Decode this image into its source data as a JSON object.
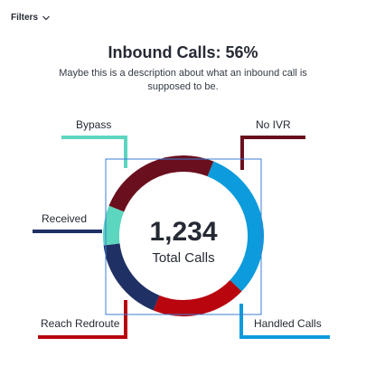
{
  "filters": {
    "label": "Filters",
    "icon": "chevron-down-icon"
  },
  "header": {
    "title": "Inbound Calls: 56%",
    "description": "Maybe this is a description about what an inbound call is supposed to be."
  },
  "center": {
    "value": "1,234",
    "label": "Total Calls"
  },
  "chart_data": {
    "type": "pie",
    "subtype": "donut",
    "title": "Inbound Calls: 56%",
    "legend": "callout-lines",
    "slices": [
      {
        "label": "No IVR",
        "value": 25,
        "color": "#6a0f1e"
      },
      {
        "label": "Handled Calls",
        "value": 31,
        "color": "#0c9bdc"
      },
      {
        "label": "Reach Redroute",
        "value": 19,
        "color": "#b8050e"
      },
      {
        "label": "Received",
        "value": 17,
        "color": "#1f3064"
      },
      {
        "label": "Bypass",
        "value": 8,
        "color": "#5dd6bf"
      }
    ]
  }
}
